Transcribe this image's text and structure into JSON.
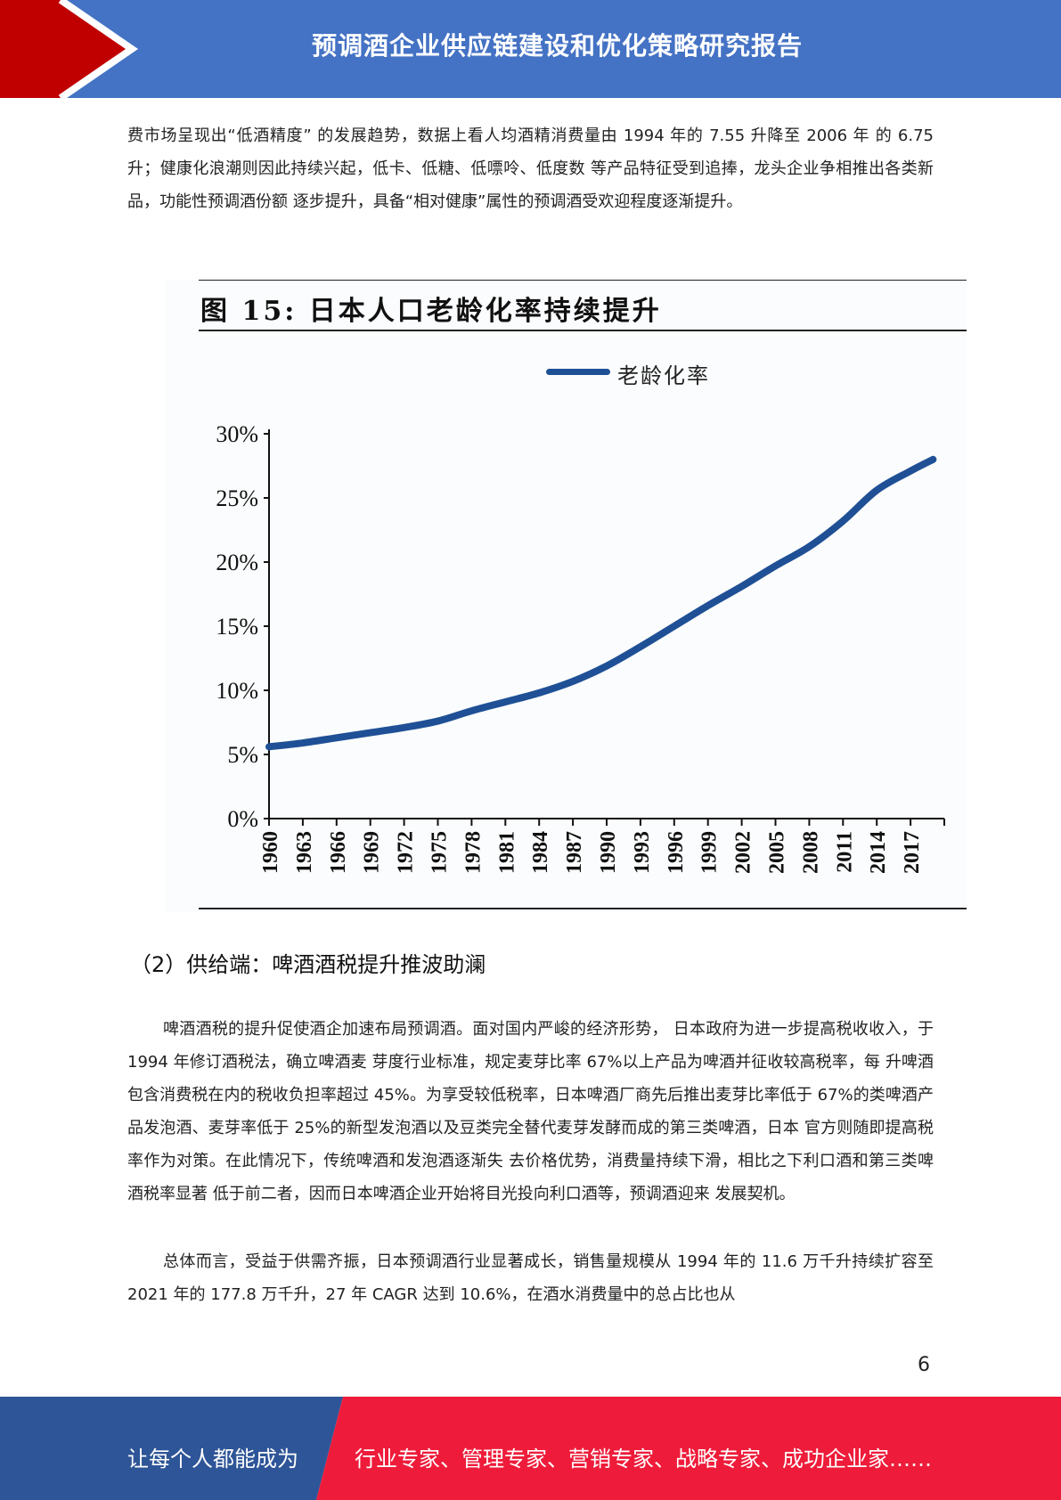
{
  "header": {
    "title": "预调酒企业供应链建设和优化策略研究报告"
  },
  "paragraphs": {
    "intro": "费市场呈现出“低酒精度” 的发展趋势，数据上看人均酒精消费量由 1994 年的 7.55 升降至 2006 年 的 6.75 升；健康化浪潮则因此持续兴起，低卡、低糖、低嘌呤、低度数 等产品特征受到追捧，龙头企业争相推出各类新品，功能性预调酒份额 逐步提升，具备“相对健康”属性的预调酒受欢迎程度逐渐提升。",
    "section2_heading": "（2）供给端：啤酒酒税提升推波助澜",
    "beer_tax": "啤酒酒税的提升促使酒企加速布局预调酒。面对国内严峻的经济形势， 日本政府为进一步提高税收收入，于 1994 年修订酒税法，确立啤酒麦 芽度行业标准，规定麦芽比率 67%以上产品为啤酒并征收较高税率，每 升啤酒包含消费税在内的税收负担率超过 45%。为享受较低税率，日本啤酒厂商先后推出麦芽比率低于 67%的类啤酒产品发泡酒、麦芽率低于 25%的新型发泡酒以及豆类完全替代麦芽发酵而成的第三类啤酒，日本 官方则随即提高税率作为对策。在此情况下，传统啤酒和发泡酒逐渐失 去价格优势，消费量持续下滑，相比之下利口酒和第三类啤酒税率显著 低于前二者，因而日本啤酒企业开始将目光投向利口酒等，预调酒迎来 发展契机。",
    "summary": "总体而言，受益于供需齐振，日本预调酒行业显著成长，销售量规模从 1994 年的 11.6 万千升持续扩容至 2021 年的 177.8 万千升，27 年 CAGR 达到 10.6%，在酒水消费量中的总占比也从"
  },
  "figure": {
    "title": "图 15:  日本人口老龄化率持续提升",
    "legend": "老龄化率"
  },
  "chart_data": {
    "type": "line",
    "title": "图 15:  日本人口老龄化率持续提升",
    "xlabel": "",
    "ylabel": "",
    "y_ticks": [
      "0%",
      "5%",
      "10%",
      "15%",
      "20%",
      "25%",
      "30%"
    ],
    "ylim": [
      0,
      30
    ],
    "x_ticks": [
      "1960",
      "1963",
      "1966",
      "1969",
      "1972",
      "1975",
      "1978",
      "1981",
      "1984",
      "1987",
      "1990",
      "1993",
      "1996",
      "1999",
      "2002",
      "2005",
      "2008",
      "2011",
      "2014",
      "2017"
    ],
    "xlim": [
      1960,
      2020
    ],
    "grid": false,
    "legend_position": "top-center",
    "colors": {
      "series": "#1f5096"
    },
    "series": [
      {
        "name": "老龄化率",
        "x": [
          1960,
          1963,
          1966,
          1969,
          1972,
          1975,
          1978,
          1981,
          1984,
          1987,
          1990,
          1993,
          1996,
          1999,
          2002,
          2005,
          2008,
          2011,
          2014,
          2017,
          2019
        ],
        "values": [
          5.6,
          5.9,
          6.3,
          6.7,
          7.1,
          7.6,
          8.4,
          9.1,
          9.8,
          10.7,
          11.9,
          13.4,
          15.0,
          16.6,
          18.1,
          19.7,
          21.2,
          23.2,
          25.6,
          27.1,
          28.0
        ]
      }
    ]
  },
  "page": {
    "number": "6"
  },
  "footer": {
    "left_text": "让每个人都能成为",
    "right_text": "行业专家、管理专家、营销专家、战略专家、成功企业家……"
  }
}
